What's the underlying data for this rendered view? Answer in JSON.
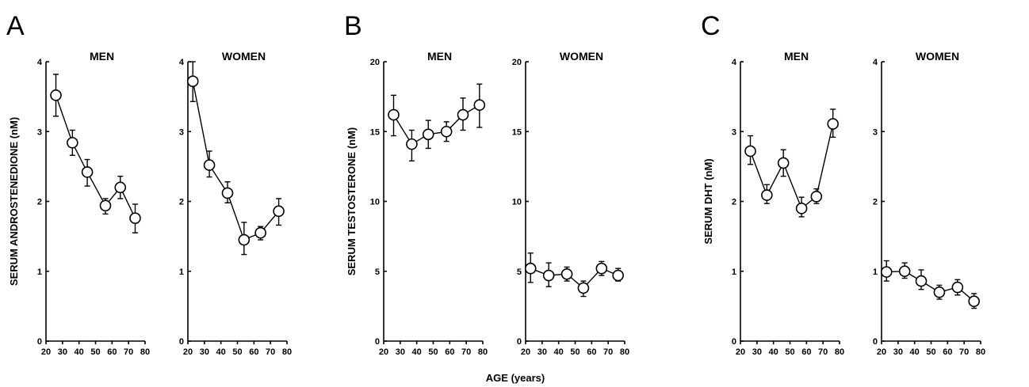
{
  "xlabel": "AGE (years)",
  "chart_data": [
    {
      "type": "line",
      "panel": "A",
      "title": "MEN",
      "ylabel": "SERUM ANDROSTENEDIONE (nM)",
      "xlim": [
        20,
        80
      ],
      "ylim": [
        0,
        4
      ],
      "xticks": [
        "20",
        "30",
        "40",
        "50",
        "60",
        "70",
        "80"
      ],
      "yticks": [
        "0",
        "1",
        "2",
        "3",
        "4"
      ],
      "points": [
        {
          "x": 26,
          "y": 3.52,
          "lo": 3.22,
          "hi": 3.82
        },
        {
          "x": 36,
          "y": 2.84,
          "lo": 2.66,
          "hi": 3.02
        },
        {
          "x": 45,
          "y": 2.42,
          "lo": 2.22,
          "hi": 2.6
        },
        {
          "x": 56,
          "y": 1.94,
          "lo": 1.82,
          "hi": 2.04
        },
        {
          "x": 65,
          "y": 2.2,
          "lo": 2.04,
          "hi": 2.36
        },
        {
          "x": 74,
          "y": 1.76,
          "lo": 1.55,
          "hi": 1.96
        }
      ]
    },
    {
      "type": "line",
      "panel": "",
      "title": "WOMEN",
      "ylabel": "",
      "xlim": [
        20,
        80
      ],
      "ylim": [
        0,
        4
      ],
      "xticks": [
        "20",
        "30",
        "40",
        "50",
        "60",
        "70",
        "80"
      ],
      "yticks": [
        "0",
        "1",
        "2",
        "3",
        "4"
      ],
      "points": [
        {
          "x": 23,
          "y": 3.72,
          "lo": 3.43,
          "hi": 4.0
        },
        {
          "x": 33,
          "y": 2.52,
          "lo": 2.35,
          "hi": 2.72
        },
        {
          "x": 44,
          "y": 2.12,
          "lo": 1.98,
          "hi": 2.28
        },
        {
          "x": 54,
          "y": 1.45,
          "lo": 1.24,
          "hi": 1.7
        },
        {
          "x": 64,
          "y": 1.55,
          "lo": 1.45,
          "hi": 1.64
        },
        {
          "x": 75,
          "y": 1.86,
          "lo": 1.66,
          "hi": 2.04
        }
      ]
    },
    {
      "type": "line",
      "panel": "B",
      "title": "MEN",
      "ylabel": "SERUM TESTOSTERONE (nM)",
      "xlim": [
        20,
        80
      ],
      "ylim": [
        0,
        20
      ],
      "xticks": [
        "20",
        "30",
        "40",
        "50",
        "60",
        "70",
        "80"
      ],
      "yticks": [
        "0",
        "5",
        "10",
        "15",
        "20"
      ],
      "points": [
        {
          "x": 26,
          "y": 16.2,
          "lo": 14.7,
          "hi": 17.6
        },
        {
          "x": 37,
          "y": 14.1,
          "lo": 12.9,
          "hi": 15.1
        },
        {
          "x": 47,
          "y": 14.8,
          "lo": 13.8,
          "hi": 15.8
        },
        {
          "x": 58,
          "y": 15.0,
          "lo": 14.3,
          "hi": 15.7
        },
        {
          "x": 68,
          "y": 16.2,
          "lo": 15.1,
          "hi": 17.4
        },
        {
          "x": 78,
          "y": 16.9,
          "lo": 15.3,
          "hi": 18.4
        }
      ]
    },
    {
      "type": "line",
      "panel": "",
      "title": "WOMEN",
      "ylabel": "",
      "xlim": [
        20,
        80
      ],
      "ylim": [
        0,
        20
      ],
      "xticks": [
        "20",
        "30",
        "40",
        "50",
        "60",
        "70",
        "80"
      ],
      "yticks": [
        "0",
        "5",
        "10",
        "15",
        "20"
      ],
      "points": [
        {
          "x": 23,
          "y": 5.2,
          "lo": 4.2,
          "hi": 6.3
        },
        {
          "x": 34,
          "y": 4.7,
          "lo": 3.9,
          "hi": 5.6
        },
        {
          "x": 45,
          "y": 4.8,
          "lo": 4.3,
          "hi": 5.3
        },
        {
          "x": 55,
          "y": 3.8,
          "lo": 3.2,
          "hi": 4.3
        },
        {
          "x": 66,
          "y": 5.2,
          "lo": 4.7,
          "hi": 5.7
        },
        {
          "x": 76,
          "y": 4.7,
          "lo": 4.3,
          "hi": 5.2
        }
      ]
    },
    {
      "type": "line",
      "panel": "C",
      "title": "MEN",
      "ylabel": "SERUM DHT (nM)",
      "xlim": [
        20,
        80
      ],
      "ylim": [
        0,
        4
      ],
      "xticks": [
        "20",
        "30",
        "40",
        "50",
        "60",
        "70",
        "80"
      ],
      "yticks": [
        "0",
        "1",
        "2",
        "3",
        "4"
      ],
      "points": [
        {
          "x": 26,
          "y": 2.72,
          "lo": 2.53,
          "hi": 2.94
        },
        {
          "x": 36,
          "y": 2.09,
          "lo": 1.97,
          "hi": 2.24
        },
        {
          "x": 46,
          "y": 2.55,
          "lo": 2.36,
          "hi": 2.74
        },
        {
          "x": 57,
          "y": 1.9,
          "lo": 1.78,
          "hi": 2.06
        },
        {
          "x": 66,
          "y": 2.07,
          "lo": 1.97,
          "hi": 2.18
        },
        {
          "x": 76,
          "y": 3.11,
          "lo": 2.92,
          "hi": 3.32
        }
      ]
    },
    {
      "type": "line",
      "panel": "",
      "title": "WOMEN",
      "ylabel": "",
      "xlim": [
        20,
        80
      ],
      "ylim": [
        0,
        4
      ],
      "xticks": [
        "20",
        "30",
        "40",
        "50",
        "60",
        "70",
        "80"
      ],
      "yticks": [
        "0",
        "1",
        "2",
        "3",
        "4"
      ],
      "points": [
        {
          "x": 23,
          "y": 0.99,
          "lo": 0.86,
          "hi": 1.15
        },
        {
          "x": 34,
          "y": 1.0,
          "lo": 0.9,
          "hi": 1.12
        },
        {
          "x": 44,
          "y": 0.86,
          "lo": 0.74,
          "hi": 1.02
        },
        {
          "x": 55,
          "y": 0.7,
          "lo": 0.6,
          "hi": 0.8
        },
        {
          "x": 66,
          "y": 0.77,
          "lo": 0.66,
          "hi": 0.88
        },
        {
          "x": 76,
          "y": 0.57,
          "lo": 0.47,
          "hi": 0.68
        }
      ]
    }
  ]
}
